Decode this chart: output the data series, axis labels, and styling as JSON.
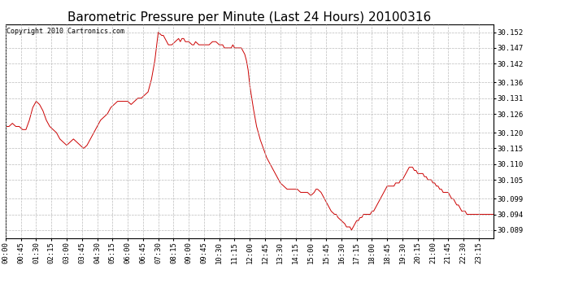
{
  "title": "Barometric Pressure per Minute (Last 24 Hours) 20100316",
  "copyright": "Copyright 2010 Cartronics.com",
  "line_color": "#cc0000",
  "background_color": "#ffffff",
  "grid_color": "#bbbbbb",
  "yticks": [
    30.089,
    30.094,
    30.099,
    30.105,
    30.11,
    30.115,
    30.12,
    30.126,
    30.131,
    30.136,
    30.142,
    30.147,
    30.152
  ],
  "ytick_labels": [
    "30.089",
    "30.094",
    "30.099",
    "30.105",
    "30.110",
    "30.115",
    "30.120",
    "30.126",
    "30.131",
    "30.136",
    "30.142",
    "30.147",
    "30.152"
  ],
  "ylim": [
    30.0865,
    30.1545
  ],
  "xtick_labels": [
    "00:00",
    "00:45",
    "01:30",
    "02:15",
    "03:00",
    "03:45",
    "04:30",
    "05:15",
    "06:00",
    "06:45",
    "07:30",
    "08:15",
    "09:00",
    "09:45",
    "10:30",
    "11:15",
    "12:00",
    "12:45",
    "13:30",
    "14:15",
    "15:00",
    "15:45",
    "16:30",
    "17:15",
    "18:00",
    "18:45",
    "19:30",
    "20:15",
    "21:00",
    "21:45",
    "22:30",
    "23:15"
  ],
  "title_fontsize": 11,
  "tick_fontsize": 6.5,
  "copyright_fontsize": 6,
  "waypoints": [
    [
      0,
      30.122
    ],
    [
      10,
      30.122
    ],
    [
      20,
      30.123
    ],
    [
      30,
      30.122
    ],
    [
      40,
      30.122
    ],
    [
      50,
      30.121
    ],
    [
      60,
      30.121
    ],
    [
      70,
      30.124
    ],
    [
      80,
      30.128
    ],
    [
      90,
      30.13
    ],
    [
      100,
      30.129
    ],
    [
      110,
      30.127
    ],
    [
      120,
      30.124
    ],
    [
      130,
      30.122
    ],
    [
      140,
      30.121
    ],
    [
      150,
      30.12
    ],
    [
      160,
      30.118
    ],
    [
      170,
      30.117
    ],
    [
      180,
      30.116
    ],
    [
      190,
      30.117
    ],
    [
      200,
      30.118
    ],
    [
      210,
      30.117
    ],
    [
      220,
      30.116
    ],
    [
      230,
      30.115
    ],
    [
      240,
      30.116
    ],
    [
      250,
      30.118
    ],
    [
      260,
      30.12
    ],
    [
      270,
      30.122
    ],
    [
      280,
      30.124
    ],
    [
      290,
      30.125
    ],
    [
      300,
      30.126
    ],
    [
      310,
      30.128
    ],
    [
      320,
      30.129
    ],
    [
      330,
      30.13
    ],
    [
      340,
      30.13
    ],
    [
      350,
      30.13
    ],
    [
      360,
      30.13
    ],
    [
      370,
      30.129
    ],
    [
      380,
      30.13
    ],
    [
      390,
      30.131
    ],
    [
      400,
      30.131
    ],
    [
      410,
      30.132
    ],
    [
      420,
      30.133
    ],
    [
      430,
      30.137
    ],
    [
      440,
      30.143
    ],
    [
      450,
      30.152
    ],
    [
      460,
      30.151
    ],
    [
      465,
      30.151
    ],
    [
      470,
      30.15
    ],
    [
      480,
      30.148
    ],
    [
      490,
      30.148
    ],
    [
      500,
      30.149
    ],
    [
      510,
      30.15
    ],
    [
      515,
      30.149
    ],
    [
      520,
      30.15
    ],
    [
      525,
      30.15
    ],
    [
      530,
      30.149
    ],
    [
      540,
      30.149
    ],
    [
      550,
      30.148
    ],
    [
      555,
      30.148
    ],
    [
      560,
      30.149
    ],
    [
      570,
      30.148
    ],
    [
      580,
      30.148
    ],
    [
      585,
      30.148
    ],
    [
      590,
      30.148
    ],
    [
      600,
      30.148
    ],
    [
      610,
      30.149
    ],
    [
      615,
      30.149
    ],
    [
      620,
      30.149
    ],
    [
      630,
      30.148
    ],
    [
      640,
      30.148
    ],
    [
      645,
      30.147
    ],
    [
      650,
      30.147
    ],
    [
      660,
      30.147
    ],
    [
      665,
      30.147
    ],
    [
      670,
      30.148
    ],
    [
      675,
      30.147
    ],
    [
      680,
      30.147
    ],
    [
      690,
      30.147
    ],
    [
      695,
      30.147
    ],
    [
      700,
      30.146
    ],
    [
      705,
      30.145
    ],
    [
      710,
      30.143
    ],
    [
      715,
      30.14
    ],
    [
      720,
      30.135
    ],
    [
      730,
      30.128
    ],
    [
      740,
      30.122
    ],
    [
      750,
      30.118
    ],
    [
      760,
      30.115
    ],
    [
      770,
      30.112
    ],
    [
      780,
      30.11
    ],
    [
      790,
      30.108
    ],
    [
      800,
      30.106
    ],
    [
      810,
      30.104
    ],
    [
      820,
      30.103
    ],
    [
      830,
      30.102
    ],
    [
      840,
      30.102
    ],
    [
      850,
      30.102
    ],
    [
      855,
      30.102
    ],
    [
      860,
      30.102
    ],
    [
      870,
      30.101
    ],
    [
      880,
      30.101
    ],
    [
      885,
      30.101
    ],
    [
      890,
      30.101
    ],
    [
      900,
      30.1
    ],
    [
      910,
      30.101
    ],
    [
      915,
      30.102
    ],
    [
      920,
      30.102
    ],
    [
      930,
      30.101
    ],
    [
      940,
      30.099
    ],
    [
      945,
      30.098
    ],
    [
      950,
      30.097
    ],
    [
      960,
      30.095
    ],
    [
      970,
      30.094
    ],
    [
      975,
      30.094
    ],
    [
      980,
      30.093
    ],
    [
      990,
      30.092
    ],
    [
      1000,
      30.091
    ],
    [
      1005,
      30.09
    ],
    [
      1010,
      30.09
    ],
    [
      1015,
      30.09
    ],
    [
      1020,
      30.089
    ],
    [
      1025,
      30.09
    ],
    [
      1030,
      30.091
    ],
    [
      1035,
      30.092
    ],
    [
      1040,
      30.092
    ],
    [
      1045,
      30.093
    ],
    [
      1050,
      30.093
    ],
    [
      1055,
      30.094
    ],
    [
      1060,
      30.094
    ],
    [
      1065,
      30.094
    ],
    [
      1070,
      30.094
    ],
    [
      1075,
      30.094
    ],
    [
      1080,
      30.095
    ],
    [
      1085,
      30.095
    ],
    [
      1090,
      30.096
    ],
    [
      1095,
      30.097
    ],
    [
      1100,
      30.098
    ],
    [
      1105,
      30.099
    ],
    [
      1110,
      30.1
    ],
    [
      1115,
      30.101
    ],
    [
      1120,
      30.102
    ],
    [
      1125,
      30.103
    ],
    [
      1130,
      30.103
    ],
    [
      1135,
      30.103
    ],
    [
      1140,
      30.103
    ],
    [
      1145,
      30.103
    ],
    [
      1150,
      30.104
    ],
    [
      1155,
      30.104
    ],
    [
      1160,
      30.104
    ],
    [
      1165,
      30.105
    ],
    [
      1170,
      30.105
    ],
    [
      1175,
      30.106
    ],
    [
      1180,
      30.107
    ],
    [
      1185,
      30.108
    ],
    [
      1190,
      30.109
    ],
    [
      1195,
      30.109
    ],
    [
      1200,
      30.109
    ],
    [
      1205,
      30.108
    ],
    [
      1210,
      30.108
    ],
    [
      1215,
      30.107
    ],
    [
      1220,
      30.107
    ],
    [
      1225,
      30.107
    ],
    [
      1230,
      30.107
    ],
    [
      1235,
      30.106
    ],
    [
      1240,
      30.106
    ],
    [
      1245,
      30.105
    ],
    [
      1250,
      30.105
    ],
    [
      1255,
      30.105
    ],
    [
      1260,
      30.104
    ],
    [
      1265,
      30.104
    ],
    [
      1270,
      30.103
    ],
    [
      1275,
      30.103
    ],
    [
      1280,
      30.102
    ],
    [
      1285,
      30.102
    ],
    [
      1290,
      30.101
    ],
    [
      1295,
      30.101
    ],
    [
      1300,
      30.101
    ],
    [
      1305,
      30.101
    ],
    [
      1310,
      30.1
    ],
    [
      1315,
      30.099
    ],
    [
      1320,
      30.099
    ],
    [
      1325,
      30.098
    ],
    [
      1330,
      30.097
    ],
    [
      1335,
      30.097
    ],
    [
      1340,
      30.096
    ],
    [
      1345,
      30.095
    ],
    [
      1350,
      30.095
    ],
    [
      1355,
      30.095
    ],
    [
      1360,
      30.094
    ],
    [
      1365,
      30.094
    ],
    [
      1370,
      30.094
    ],
    [
      1375,
      30.094
    ],
    [
      1380,
      30.094
    ],
    [
      1385,
      30.094
    ],
    [
      1390,
      30.094
    ],
    [
      1395,
      30.094
    ],
    [
      1400,
      30.094
    ],
    [
      1405,
      30.094
    ],
    [
      1410,
      30.094
    ],
    [
      1415,
      30.094
    ],
    [
      1420,
      30.094
    ],
    [
      1425,
      30.094
    ],
    [
      1430,
      30.094
    ],
    [
      1435,
      30.094
    ],
    [
      1439,
      30.094
    ]
  ]
}
